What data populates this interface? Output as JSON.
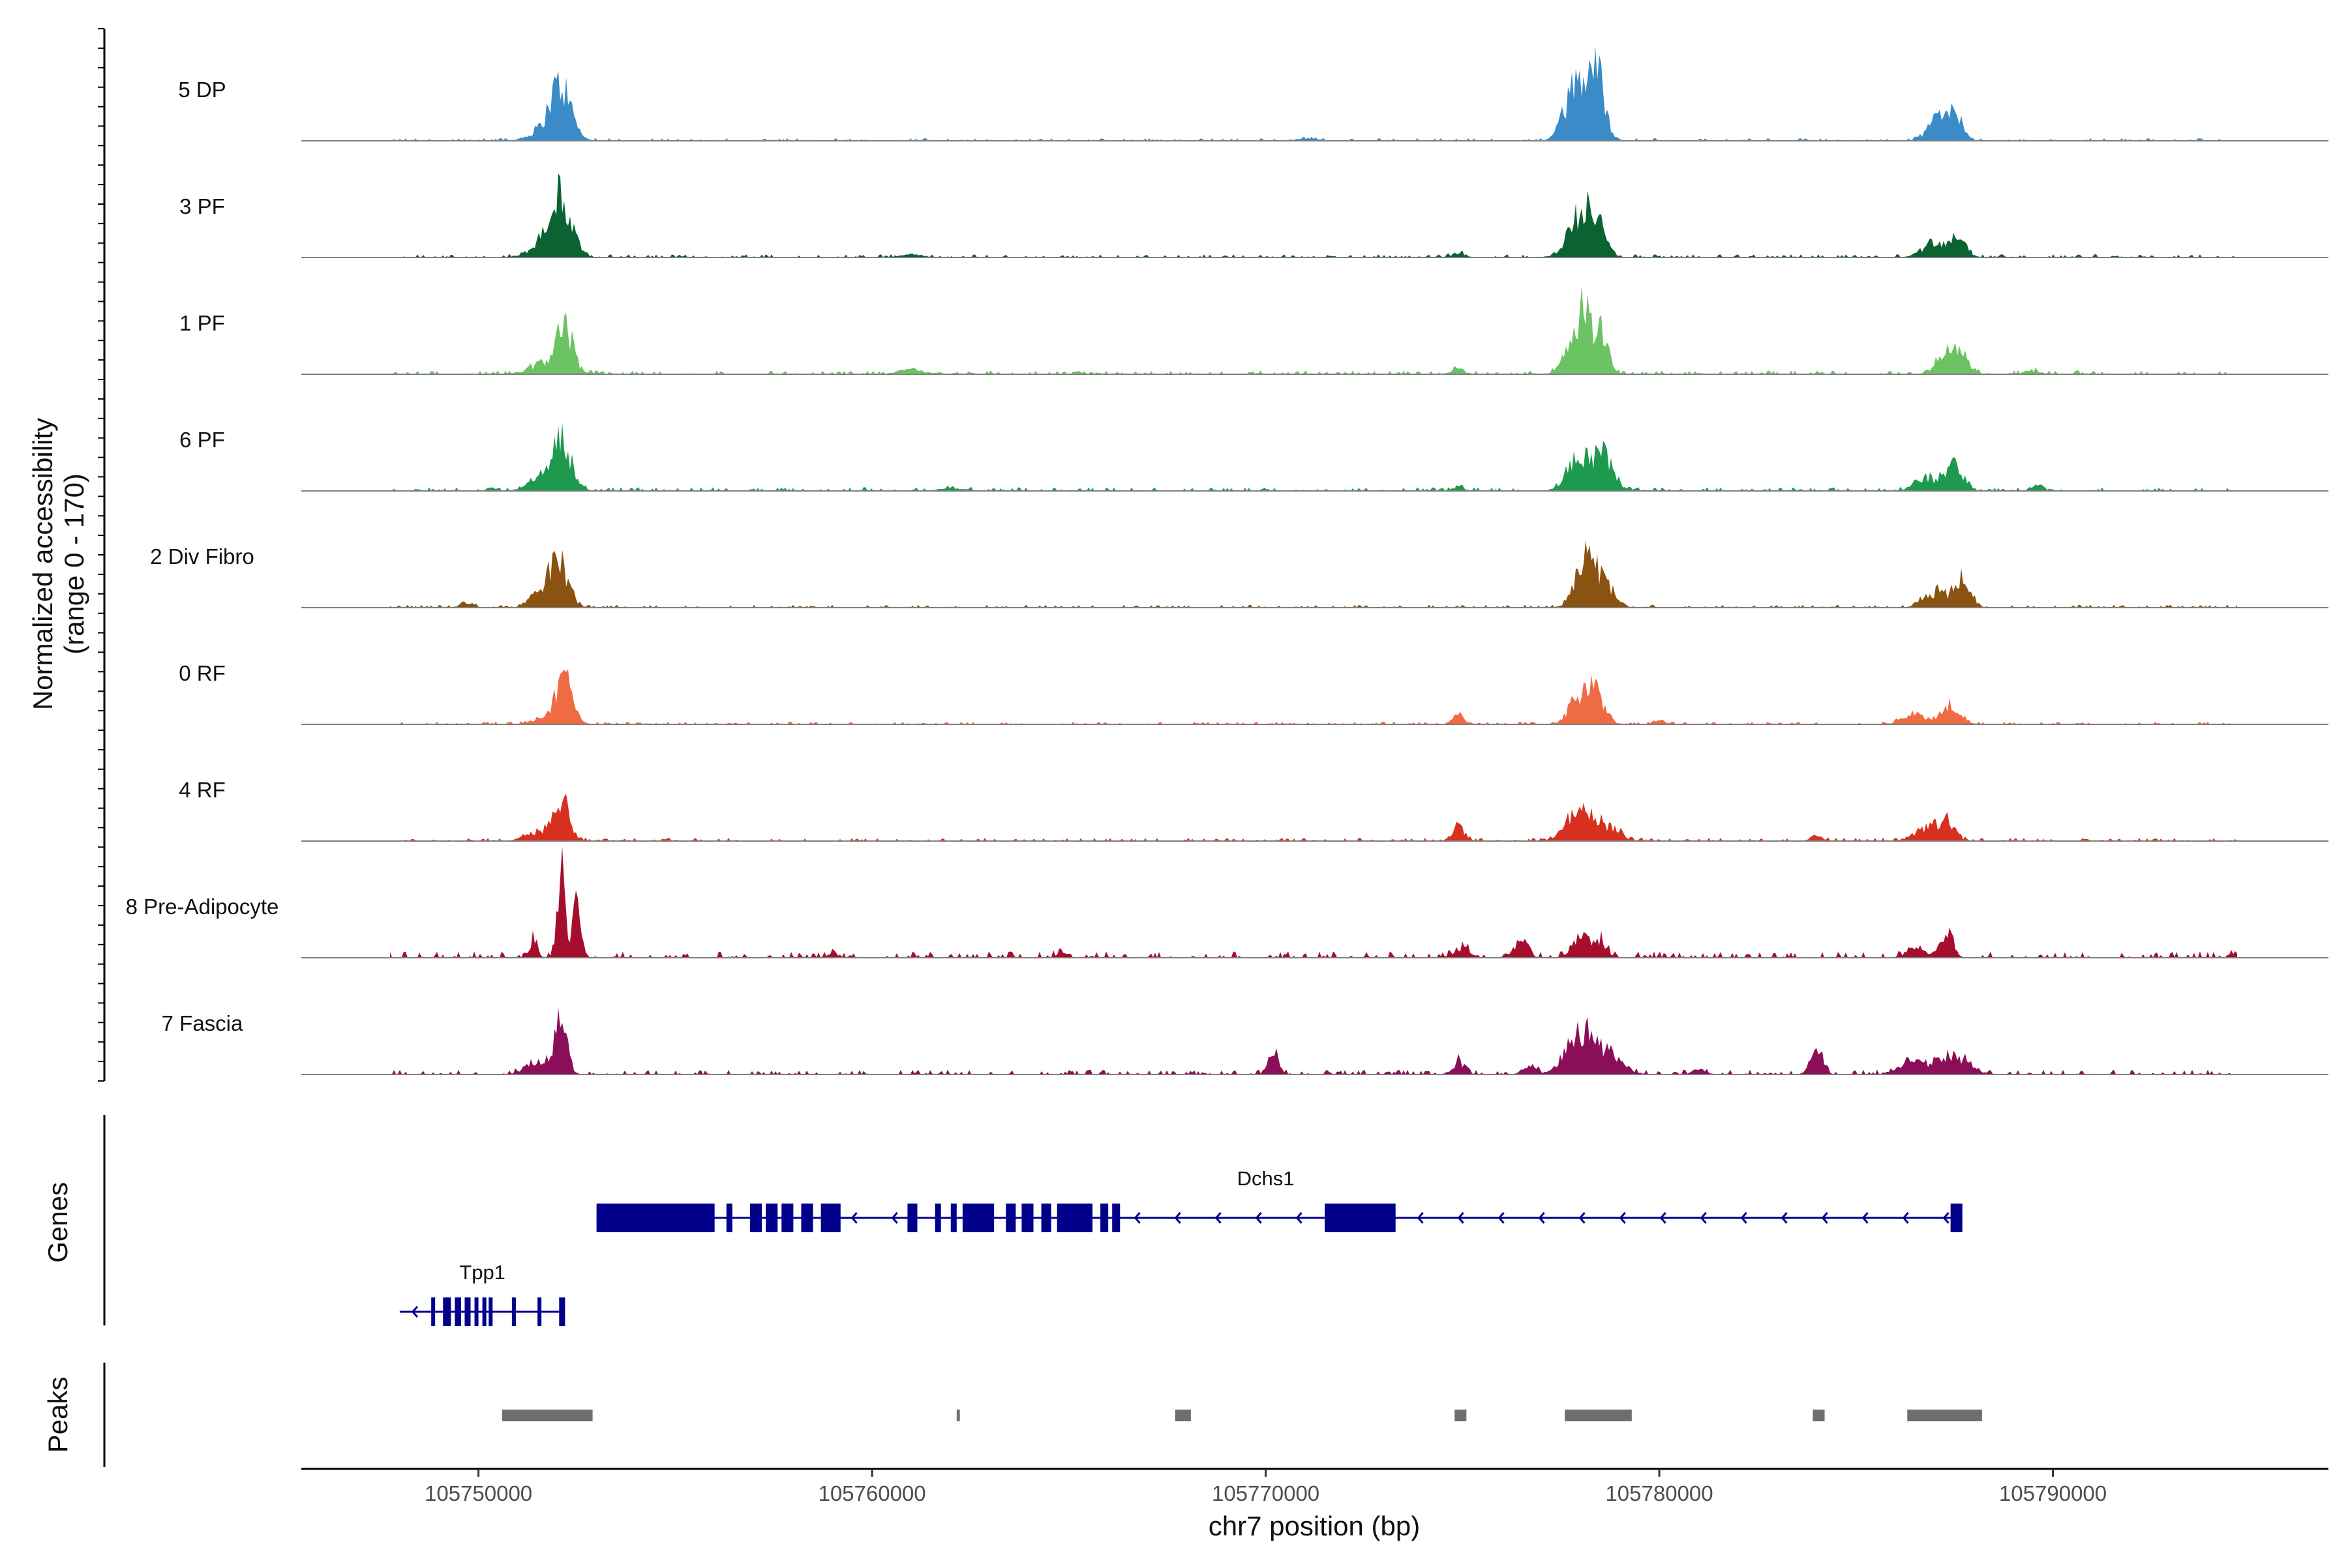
{
  "chart_data": {
    "type": "area",
    "title": "",
    "ylabel": "Normalized accessibility\n(range 0 - 170)",
    "ylabel_lines": [
      "Normalized accessibility",
      "(range 0 - 170)"
    ],
    "ylim": [
      0,
      170
    ],
    "xlabel": "chr7 position (bp)",
    "xlim": [
      105745500,
      105797000
    ],
    "xticks": [
      105750000,
      105760000,
      105770000,
      105780000,
      105790000
    ],
    "xtick_labels": [
      "105750000",
      "105760000",
      "105770000",
      "105780000",
      "105790000"
    ],
    "track_labels": {
      "genes": "Genes",
      "peaks": "Peaks"
    },
    "series": [
      {
        "name": "5 DP",
        "color": "#3a8bc7",
        "noise": 2.5,
        "peaks": [
          [
            105752100,
            75,
            250
          ],
          [
            105751800,
            20,
            400
          ],
          [
            105778100,
            55,
            350
          ],
          [
            105778400,
            80,
            200
          ],
          [
            105777800,
            45,
            250
          ],
          [
            105787100,
            35,
            250
          ],
          [
            105787500,
            40,
            200
          ],
          [
            105771000,
            3,
            300
          ]
        ]
      },
      {
        "name": "3 PF",
        "color": "#0b6332",
        "noise": 3,
        "peaks": [
          [
            105752100,
            75,
            250
          ],
          [
            105751800,
            30,
            400
          ],
          [
            105778300,
            70,
            250
          ],
          [
            105777900,
            45,
            300
          ],
          [
            105787000,
            25,
            300
          ],
          [
            105787600,
            25,
            200
          ],
          [
            105774900,
            8,
            150
          ],
          [
            105761000,
            4,
            300
          ]
        ]
      },
      {
        "name": "1 PF",
        "color": "#6cc363",
        "noise": 3.5,
        "peaks": [
          [
            105752200,
            65,
            200
          ],
          [
            105751800,
            20,
            400
          ],
          [
            105778100,
            85,
            150
          ],
          [
            105778500,
            70,
            180
          ],
          [
            105777800,
            40,
            250
          ],
          [
            105787300,
            30,
            250
          ],
          [
            105787700,
            25,
            200
          ],
          [
            105761000,
            8,
            300
          ],
          [
            105774900,
            8,
            150
          ],
          [
            105789500,
            5,
            200
          ]
        ]
      },
      {
        "name": "6 PF",
        "color": "#1d9a4e",
        "noise": 3.5,
        "peaks": [
          [
            105752100,
            80,
            250
          ],
          [
            105751500,
            15,
            300
          ],
          [
            105778000,
            55,
            300
          ],
          [
            105778600,
            50,
            250
          ],
          [
            105787500,
            45,
            200
          ],
          [
            105786800,
            20,
            300
          ],
          [
            105789600,
            10,
            150
          ],
          [
            105762000,
            4,
            300
          ],
          [
            105774900,
            5,
            150
          ]
        ]
      },
      {
        "name": "2 Div Fibro",
        "color": "#8b5312",
        "noise": 2.8,
        "peaks": [
          [
            105752000,
            80,
            250
          ],
          [
            105751400,
            15,
            200
          ],
          [
            105778100,
            70,
            250
          ],
          [
            105778600,
            40,
            250
          ],
          [
            105787700,
            50,
            200
          ],
          [
            105787000,
            25,
            300
          ],
          [
            105749700,
            10,
            150
          ]
        ]
      },
      {
        "name": "0 RF",
        "color": "#ef6b43",
        "noise": 2.5,
        "peaks": [
          [
            105752200,
            75,
            200
          ],
          [
            105751800,
            15,
            300
          ],
          [
            105778300,
            55,
            250
          ],
          [
            105777900,
            30,
            250
          ],
          [
            105787400,
            30,
            250
          ],
          [
            105786500,
            15,
            300
          ],
          [
            105774900,
            15,
            150
          ],
          [
            105780000,
            7,
            150
          ]
        ]
      },
      {
        "name": "4 RF",
        "color": "#d7301f",
        "noise": 3,
        "peaks": [
          [
            105752100,
            70,
            200
          ],
          [
            105751500,
            15,
            300
          ],
          [
            105774900,
            25,
            150
          ],
          [
            105778200,
            45,
            250
          ],
          [
            105777700,
            25,
            250
          ],
          [
            105778800,
            20,
            250
          ],
          [
            105786800,
            20,
            300
          ],
          [
            105787300,
            30,
            200
          ],
          [
            105784000,
            8,
            150
          ]
        ]
      },
      {
        "name": "8 Pre-Adipocyte",
        "color": "#a50f2d",
        "noise": 6,
        "peaks": [
          [
            105752100,
            135,
            100
          ],
          [
            105752500,
            90,
            100
          ],
          [
            105751400,
            30,
            100
          ],
          [
            105778000,
            40,
            200
          ],
          [
            105778500,
            30,
            150
          ],
          [
            105776500,
            35,
            150
          ],
          [
            105787300,
            40,
            150
          ],
          [
            105786500,
            20,
            200
          ],
          [
            105775000,
            15,
            200
          ],
          [
            105794600,
            10,
            100
          ],
          [
            105764800,
            12,
            100
          ],
          [
            105759000,
            10,
            100
          ]
        ]
      },
      {
        "name": "7 Fascia",
        "color": "#8b0e59",
        "noise": 4.5,
        "peaks": [
          [
            105752100,
            85,
            150
          ],
          [
            105751500,
            20,
            300
          ],
          [
            105778000,
            70,
            350
          ],
          [
            105778800,
            30,
            300
          ],
          [
            105784000,
            35,
            150
          ],
          [
            105787400,
            30,
            400
          ],
          [
            105786400,
            20,
            300
          ],
          [
            105770200,
            35,
            120
          ],
          [
            105774900,
            20,
            150
          ],
          [
            105776700,
            15,
            150
          ],
          [
            105781000,
            10,
            150
          ]
        ]
      }
    ],
    "genes": [
      {
        "name": "Tpp1",
        "strand": "-",
        "row": 2,
        "label_x": 105750100,
        "start": 105748000,
        "end": 105752200,
        "exons": [
          [
            105748800,
            105748880
          ],
          [
            105749100,
            105749300
          ],
          [
            105749400,
            105749560
          ],
          [
            105749650,
            105749800
          ],
          [
            105749900,
            105750000
          ],
          [
            105750100,
            105750200
          ],
          [
            105750260,
            105750340
          ],
          [
            105750850,
            105750950
          ],
          [
            105751500,
            105751600
          ],
          [
            105752050,
            105752200
          ]
        ]
      },
      {
        "name": "Dchs1",
        "strand": "-",
        "row": 1,
        "label_x": 105770000,
        "start": 105753000,
        "end": 105787700,
        "exons": [
          [
            105753000,
            105756000
          ],
          [
            105756300,
            105756450
          ],
          [
            105756900,
            105757200
          ],
          [
            105757300,
            105757600
          ],
          [
            105757700,
            105758000
          ],
          [
            105758200,
            105758500
          ],
          [
            105758700,
            105759200
          ],
          [
            105760900,
            105761150
          ],
          [
            105761600,
            105761750
          ],
          [
            105762000,
            105762150
          ],
          [
            105762300,
            105763100
          ],
          [
            105763400,
            105763650
          ],
          [
            105763800,
            105764100
          ],
          [
            105764300,
            105764550
          ],
          [
            105764700,
            105765600
          ],
          [
            105765800,
            105766000
          ],
          [
            105766100,
            105766300
          ],
          [
            105771500,
            105773300
          ],
          [
            105787400,
            105787700
          ]
        ]
      }
    ],
    "peaks_track": [
      [
        105750600,
        105752900
      ],
      [
        105762150,
        105762230
      ],
      [
        105767700,
        105768100
      ],
      [
        105774800,
        105775100
      ],
      [
        105777600,
        105779300
      ],
      [
        105783900,
        105784200
      ],
      [
        105786300,
        105788200
      ]
    ]
  }
}
